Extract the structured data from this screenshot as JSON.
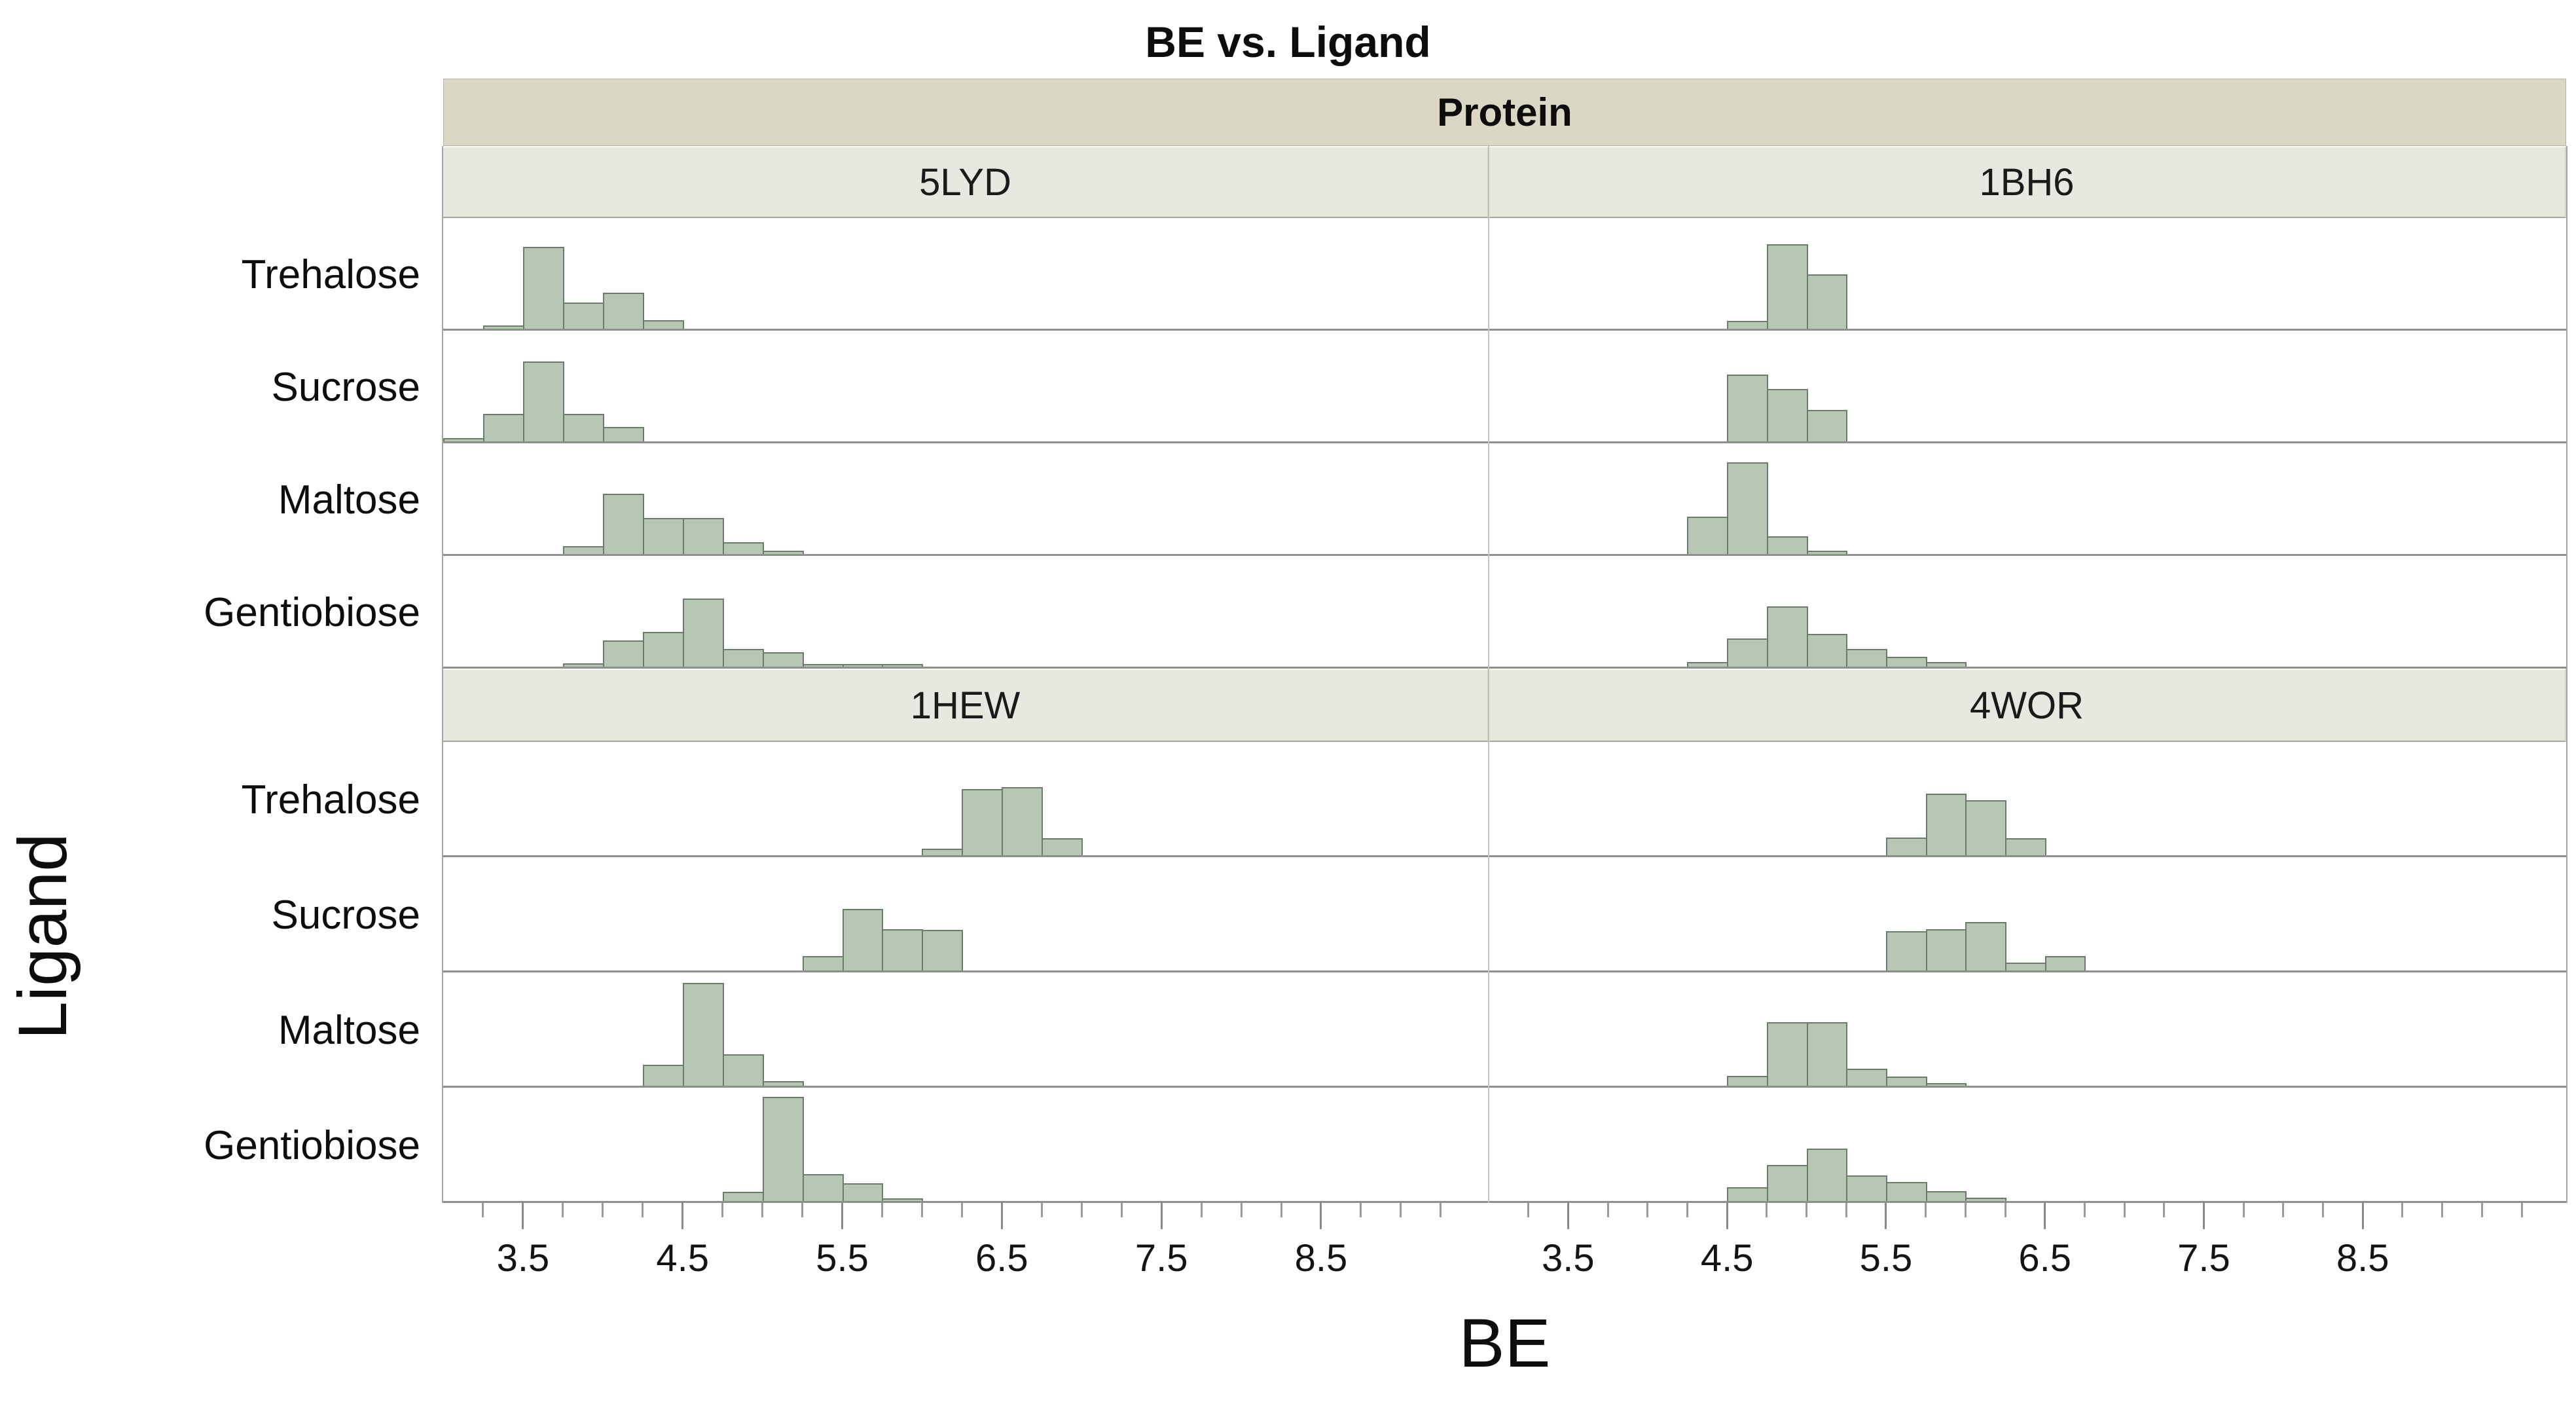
{
  "chart_data": {
    "type": "histogram",
    "title": "BE vs. Ligand",
    "xlabel": "BE",
    "ylabel": "Ligand",
    "facet_header": "Protein",
    "proteins": [
      "5LYD",
      "1BH6",
      "1HEW",
      "4WOR"
    ],
    "ligands": [
      "Trehalose",
      "Sucrose",
      "Maltose",
      "Gentiobiose"
    ],
    "panel_layout": [
      [
        "5LYD",
        "1BH6"
      ],
      [
        "1HEW",
        "4WOR"
      ]
    ],
    "x_ticks": [
      3.5,
      4.5,
      5.5,
      6.5,
      7.5,
      8.5
    ],
    "x_axis_columns": [
      {
        "min": 3.0,
        "max": 9.55
      },
      {
        "min": 3.0,
        "max": 9.78
      }
    ],
    "minor_tick_step": 0.25,
    "bin_width": 0.25,
    "height_unit": "fraction of facet row height",
    "grid": false,
    "legend": "none",
    "histograms": {
      "5LYD": {
        "Trehalose": {
          "bin_start": 3.25,
          "heights": [
            0.03,
            0.75,
            0.24,
            0.33,
            0.08
          ]
        },
        "Sucrose": {
          "bin_start": 3.0,
          "heights": [
            0.03,
            0.25,
            0.73,
            0.25,
            0.13
          ]
        },
        "Maltose": {
          "bin_start": 3.75,
          "heights": [
            0.07,
            0.55,
            0.33,
            0.33,
            0.11,
            0.03
          ]
        },
        "Gentiobiose": {
          "bin_start": 3.75,
          "heights": [
            0.03,
            0.24,
            0.32,
            0.62,
            0.16,
            0.13,
            0.02,
            0.02,
            0.02
          ]
        }
      },
      "1BH6": {
        "Trehalose": {
          "bin_start": 4.5,
          "heights": [
            0.07,
            0.77,
            0.5
          ]
        },
        "Sucrose": {
          "bin_start": 4.5,
          "heights": [
            0.61,
            0.48,
            0.29
          ]
        },
        "Maltose": {
          "bin_start": 4.25,
          "heights": [
            0.34,
            0.84,
            0.16,
            0.03
          ]
        },
        "Gentiobiose": {
          "bin_start": 4.25,
          "heights": [
            0.04,
            0.26,
            0.55,
            0.3,
            0.16,
            0.09,
            0.04
          ]
        }
      },
      "1HEW": {
        "Trehalose": {
          "bin_start": 6.0,
          "heights": [
            0.06,
            0.59,
            0.61,
            0.15
          ]
        },
        "Sucrose": {
          "bin_start": 5.25,
          "heights": [
            0.13,
            0.55,
            0.37,
            0.36
          ]
        },
        "Maltose": {
          "bin_start": 4.25,
          "heights": [
            0.19,
            0.92,
            0.28,
            0.04
          ]
        },
        "Gentiobiose": {
          "bin_start": 4.75,
          "heights": [
            0.08,
            0.93,
            0.24,
            0.16,
            0.02
          ]
        }
      },
      "4WOR": {
        "Trehalose": {
          "bin_start": 5.5,
          "heights": [
            0.16,
            0.55,
            0.49,
            0.15
          ]
        },
        "Sucrose": {
          "bin_start": 5.5,
          "heights": [
            0.35,
            0.37,
            0.43,
            0.07,
            0.13
          ]
        },
        "Maltose": {
          "bin_start": 4.5,
          "heights": [
            0.09,
            0.57,
            0.57,
            0.15,
            0.08,
            0.02
          ]
        },
        "Gentiobiose": {
          "bin_start": 4.5,
          "heights": [
            0.12,
            0.32,
            0.47,
            0.23,
            0.17,
            0.09,
            0.03
          ]
        }
      }
    },
    "colors": {
      "bar_fill": "#b6c8b4",
      "bar_border": "#6b7c6d",
      "facet_header_bg": "#dad7c5",
      "facet_strip_bg": "#e9e8e0",
      "row_line": "#8f8f8f",
      "background": "#ffffff"
    }
  }
}
